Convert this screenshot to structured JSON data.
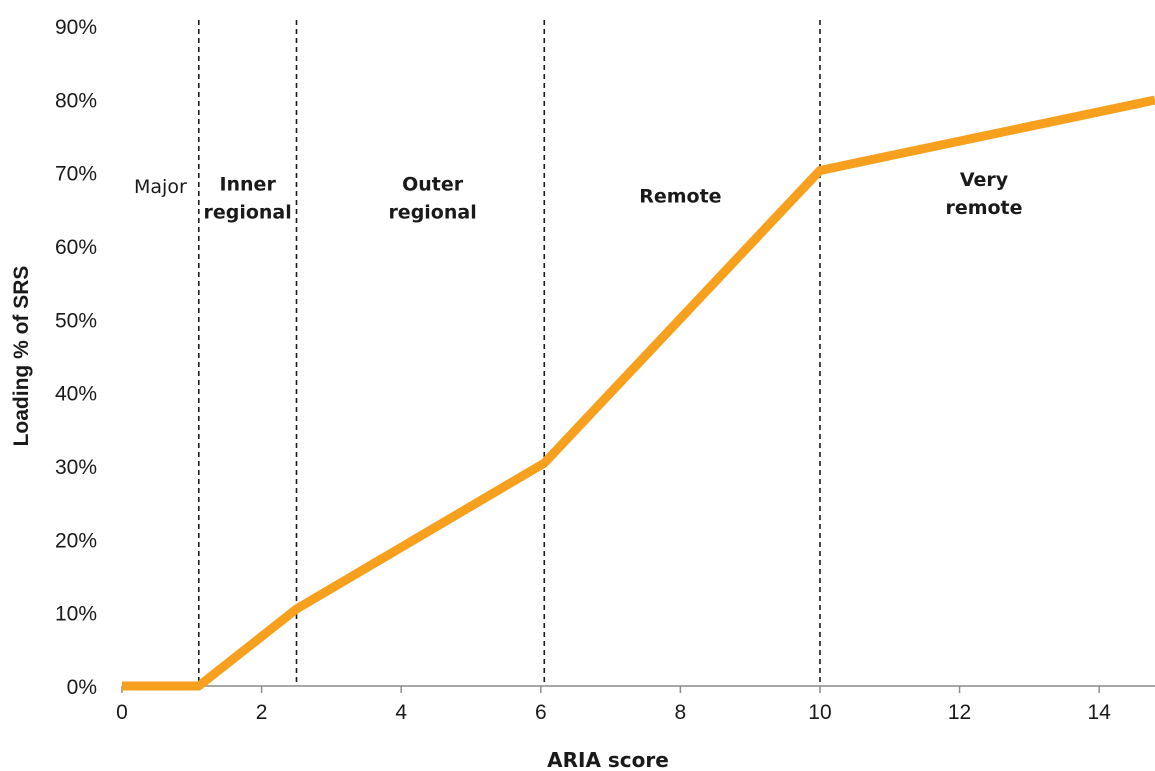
{
  "chart_data": {
    "type": "line",
    "xlabel": "ARIA score",
    "ylabel": "Loading % of SRS",
    "xlim": [
      0,
      14.8
    ],
    "ylim": [
      0,
      90
    ],
    "x_ticks": [
      "0",
      "2",
      "4",
      "6",
      "8",
      "10",
      "12",
      "14"
    ],
    "y_ticks": [
      "0%",
      "10%",
      "20%",
      "30%",
      "40%",
      "50%",
      "60%",
      "70%",
      "80%",
      "90%"
    ],
    "grid": false,
    "series": [
      {
        "color": "#F7A01E",
        "points": [
          {
            "x": 0,
            "y": 0
          },
          {
            "x": 1.1,
            "y": 0
          },
          {
            "x": 2.5,
            "y": 10.5
          },
          {
            "x": 6.05,
            "y": 30.4
          },
          {
            "x": 10.0,
            "y": 70.3
          },
          {
            "x": 14.8,
            "y": 79.9
          }
        ]
      }
    ],
    "thresholds": [
      1.1,
      2.5,
      6.05,
      10.0
    ],
    "regions": [
      {
        "lines": [
          "Major"
        ],
        "bold": false,
        "x_center": 0.55,
        "y_first": 67.2
      },
      {
        "lines": [
          "Inner",
          "regional"
        ],
        "bold": true,
        "x_center": 1.8,
        "y_first": 67.6
      },
      {
        "lines": [
          "Outer",
          "regional"
        ],
        "bold": true,
        "x_center": 4.45,
        "y_first": 67.6
      },
      {
        "lines": [
          "Remote"
        ],
        "bold": true,
        "x_center": 8.0,
        "y_first": 65.9
      },
      {
        "lines": [
          "Very",
          "remote"
        ],
        "bold": true,
        "x_center": 12.35,
        "y_first": 68.2
      }
    ]
  }
}
